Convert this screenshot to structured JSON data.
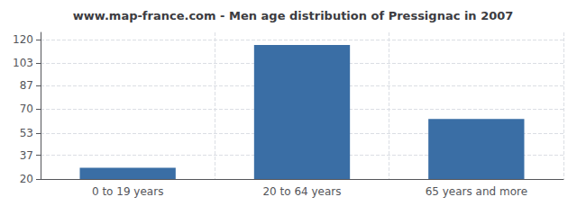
{
  "chart_data": {
    "type": "bar",
    "title": "www.map-france.com - Men age distribution of Pressignac in 2007",
    "categories": [
      "0 to 19 years",
      "20 to 64 years",
      "65 years and more"
    ],
    "values": [
      28,
      116,
      63
    ],
    "color": "#3a6ea5",
    "ylim": [
      20,
      125
    ],
    "yticks": [
      20,
      37,
      53,
      70,
      87,
      103,
      120
    ],
    "grid": true
  }
}
